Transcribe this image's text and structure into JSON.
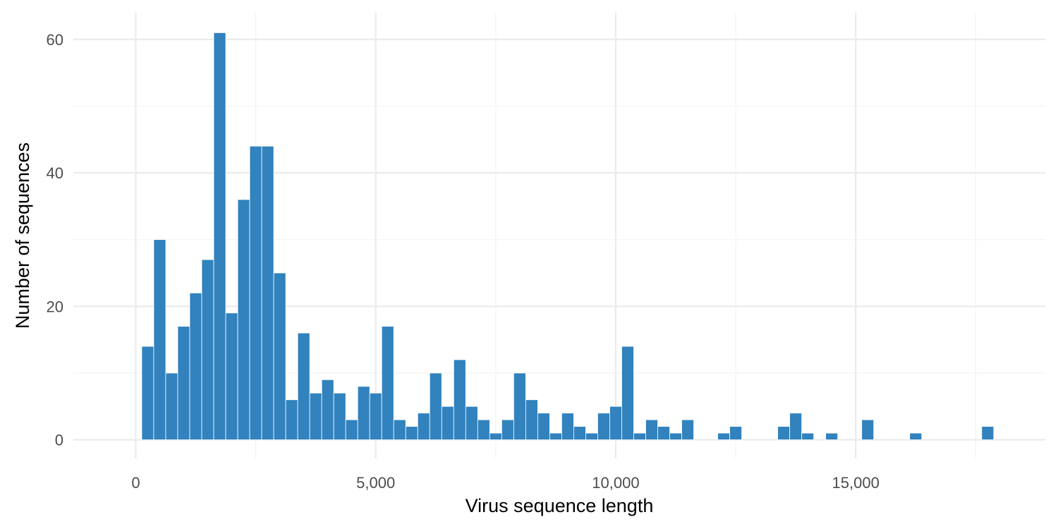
{
  "chart_data": {
    "type": "bar",
    "subtype": "histogram",
    "title": "",
    "xlabel": "Virus sequence length",
    "ylabel": "Number of sequences",
    "bar_color": "#3182bd",
    "grid": true,
    "xlim": [
      -1300,
      18950
    ],
    "ylim": [
      -2.8,
      64
    ],
    "x_ticks": [
      0,
      5000,
      10000,
      15000
    ],
    "x_tick_labels": [
      "0",
      "5,000",
      "10,000",
      "15,000"
    ],
    "y_ticks": [
      0,
      20,
      40,
      60
    ],
    "y_tick_labels": [
      "0",
      "20",
      "40",
      "60"
    ],
    "bin_width": 250,
    "x": [
      250,
      500,
      750,
      1000,
      1250,
      1500,
      1750,
      2000,
      2250,
      2500,
      2750,
      3000,
      3250,
      3500,
      3750,
      4000,
      4250,
      4500,
      4750,
      5000,
      5250,
      5500,
      5750,
      6000,
      6250,
      6500,
      6750,
      7000,
      7250,
      7500,
      7750,
      8000,
      8250,
      8500,
      8750,
      9000,
      9250,
      9500,
      9750,
      10000,
      10250,
      10500,
      10750,
      11000,
      11250,
      11500,
      12250,
      12500,
      13500,
      13750,
      14000,
      14500,
      15250,
      16250,
      17750
    ],
    "values": [
      14,
      30,
      10,
      17,
      22,
      27,
      61,
      19,
      36,
      44,
      44,
      25,
      6,
      16,
      7,
      9,
      7,
      3,
      8,
      7,
      17,
      3,
      2,
      4,
      10,
      5,
      12,
      5,
      3,
      1,
      3,
      10,
      6,
      4,
      1,
      4,
      2,
      1,
      4,
      5,
      14,
      1,
      3,
      2,
      1,
      3,
      1,
      2,
      2,
      4,
      1,
      1,
      3,
      1,
      2
    ]
  }
}
